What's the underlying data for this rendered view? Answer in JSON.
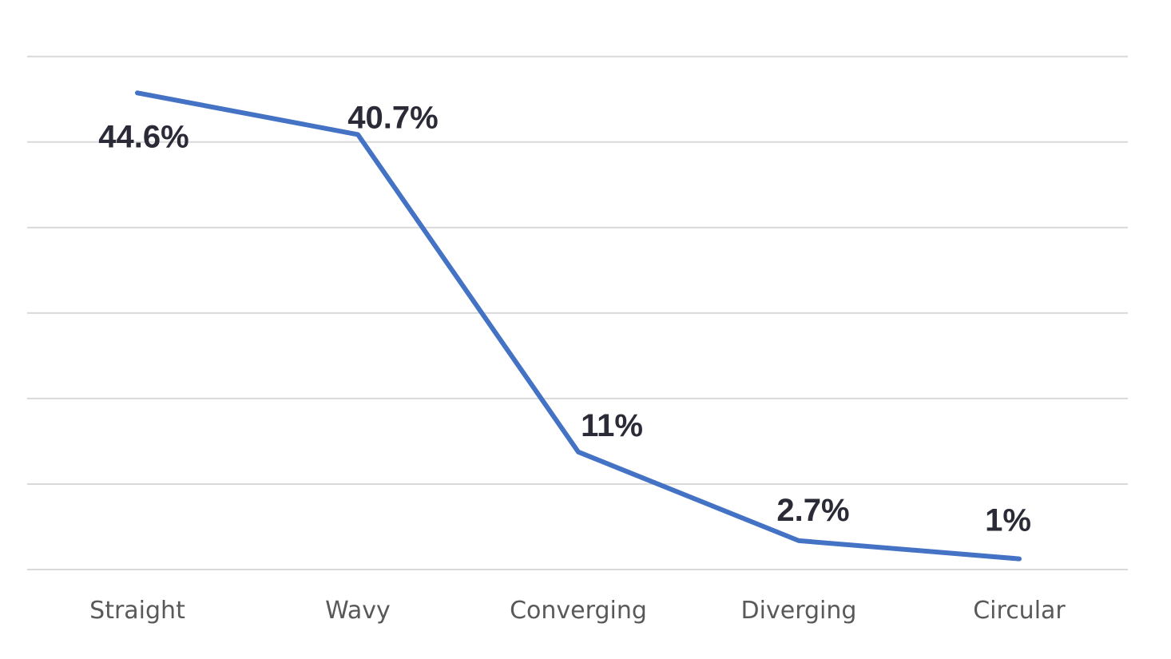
{
  "chart_data": {
    "type": "line",
    "categories": [
      "Straight",
      "Wavy",
      "Converging",
      "Diverging",
      "Circular"
    ],
    "series": [
      {
        "values": [
          44.6,
          40.7,
          11,
          2.7,
          1
        ],
        "data_labels": [
          "44.6%",
          "40.7%",
          "11%",
          "2.7%",
          "1%"
        ],
        "color": "#4472c4"
      }
    ],
    "ylim": [
      0,
      50
    ],
    "yticks": [
      0,
      8,
      16,
      24,
      32,
      40,
      48
    ],
    "y_tick_labels_visible": false,
    "grid": true,
    "grid_color": "#d9d9d9",
    "legend": "none"
  }
}
